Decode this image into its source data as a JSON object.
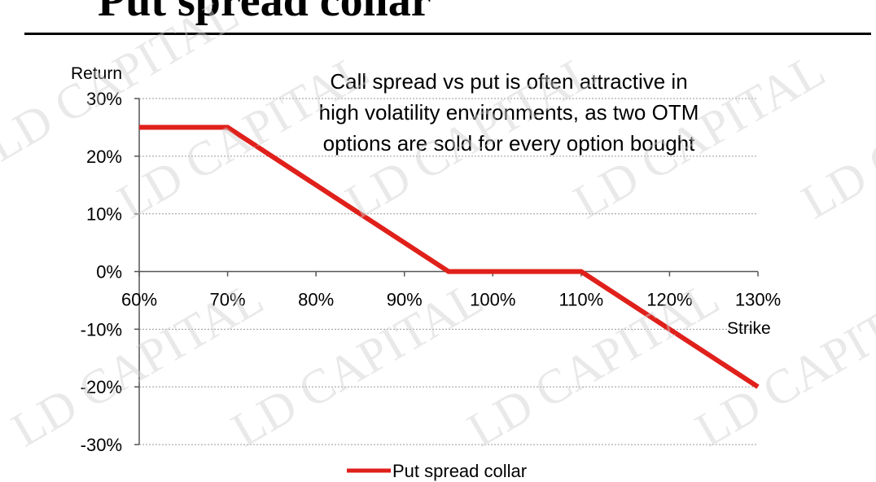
{
  "title": "Put spread collar",
  "chart_data": {
    "type": "line",
    "xlabel": "Strike",
    "ylabel": "Return",
    "xlim": [
      60,
      130
    ],
    "ylim": [
      -30,
      30
    ],
    "x_ticks": [
      "60%",
      "70%",
      "80%",
      "90%",
      "100%",
      "110%",
      "120%",
      "130%"
    ],
    "y_ticks": [
      "30%",
      "20%",
      "10%",
      "0%",
      "-10%",
      "-20%",
      "-30%"
    ],
    "grid": "horizontal dotted",
    "legend_position": "bottom",
    "annotation": [
      "Call spread vs put is often attractive in",
      "high volatility environments, as two OTM",
      "options are sold for every option bought"
    ],
    "series": [
      {
        "name": "Put spread collar",
        "color": "#e0201b",
        "x": [
          60,
          70,
          95,
          110,
          130
        ],
        "y": [
          25,
          25,
          0,
          0,
          -20
        ]
      }
    ]
  },
  "watermark": "LD CAPITAL"
}
